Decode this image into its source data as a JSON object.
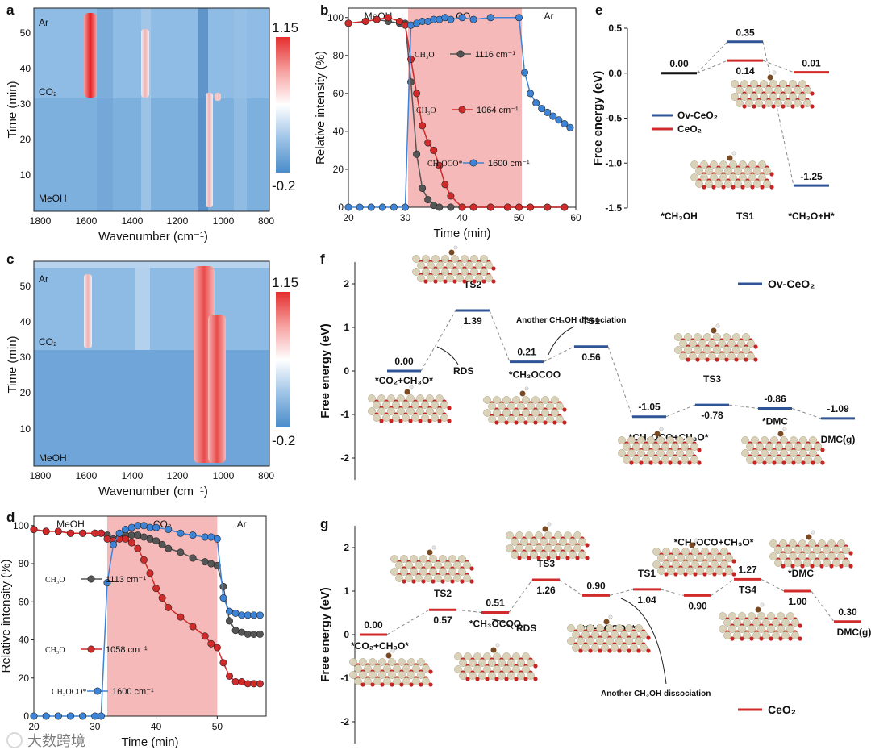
{
  "colors": {
    "blue": "#2f5597",
    "red": "#d12a2a",
    "gray": "#555555",
    "lightblue": "#3d83d6",
    "pink": "#f5b5b5",
    "heatHigh": "#e62e2e",
    "heatLow": "#4a8cc9"
  },
  "panelA": {
    "label": "a",
    "ylabel": "Time (min)",
    "xlabel": "Wavenumber (cm⁻¹)",
    "xticks": [
      "1800",
      "1600",
      "1400",
      "1200",
      "1000",
      "800"
    ],
    "yticks": [
      "10",
      "20",
      "30",
      "40",
      "50"
    ],
    "annot_top": "Ar",
    "annot_mid": "CO₂",
    "annot_bot": "MeOH",
    "cbar_max": "1.15",
    "cbar_min": "-0.2"
  },
  "panelC": {
    "label": "c",
    "ylabel": "Time (min)",
    "xlabel": "Wavenumber (cm⁻¹)",
    "xticks": [
      "1800",
      "1600",
      "1400",
      "1200",
      "1000",
      "800"
    ],
    "yticks": [
      "10",
      "20",
      "30",
      "40",
      "50"
    ],
    "annot_top": "Ar",
    "annot_mid": "CO₂",
    "annot_bot": "MeOH",
    "cbar_max": "1.15",
    "cbar_min": "-0.2"
  },
  "chart_data": [
    {
      "type": "line",
      "id": "b",
      "title": "",
      "xlabel": "Time (min)",
      "ylabel": "Relative intensity (%)",
      "xlim": [
        20,
        60
      ],
      "ylim": [
        0,
        105
      ],
      "xticks": [
        "20",
        "30",
        "40",
        "50",
        "60"
      ],
      "yticks": [
        "0",
        "20",
        "40",
        "60",
        "80",
        "100"
      ],
      "regions": [
        "MeOH",
        "CO₂",
        "Ar"
      ],
      "shade": [
        30.5,
        50.5
      ],
      "series": [
        {
          "name": "1116 cm⁻¹",
          "species": "CH₃O",
          "color": "#555555",
          "x": [
            20,
            23,
            25,
            27,
            29,
            30,
            31,
            32,
            33,
            34,
            35,
            36,
            38,
            40,
            42,
            45,
            48,
            50,
            52,
            55,
            58
          ],
          "y": [
            97,
            98,
            99,
            98,
            97,
            97,
            66,
            28,
            10,
            4,
            1,
            0,
            0,
            0,
            0,
            0,
            0,
            0,
            0,
            0,
            0
          ]
        },
        {
          "name": "1064 cm⁻¹",
          "species": "CH₃O",
          "color": "#d12a2a",
          "x": [
            20,
            23,
            25,
            27,
            29,
            30,
            31,
            32,
            33,
            34,
            35,
            36,
            37,
            38,
            40,
            42,
            45,
            48,
            50,
            52,
            55,
            58
          ],
          "y": [
            97,
            98,
            99,
            100,
            98,
            96,
            78,
            60,
            43,
            34,
            30,
            22,
            12,
            6,
            0,
            0,
            0,
            0,
            0,
            0,
            0,
            0
          ]
        },
        {
          "name": "1600 cm⁻¹",
          "species": "CH₃OCO*",
          "color": "#3d83d6",
          "x": [
            20,
            22,
            24,
            26,
            28,
            30,
            31,
            32,
            33,
            34,
            35,
            36,
            37,
            38,
            40,
            42,
            45,
            50,
            51,
            52,
            53,
            54,
            55,
            56,
            57,
            58,
            59
          ],
          "y": [
            0,
            0,
            0,
            0,
            0,
            0,
            96,
            97,
            98,
            98,
            99,
            99,
            100,
            99,
            100,
            99,
            100,
            100,
            71,
            60,
            55,
            52,
            50,
            48,
            46,
            44,
            42
          ]
        }
      ]
    },
    {
      "type": "line",
      "id": "d",
      "title": "",
      "xlabel": "Time (min)",
      "ylabel": "Relative intensity (%)",
      "xlim": [
        20,
        58
      ],
      "ylim": [
        0,
        105
      ],
      "xticks": [
        "20",
        "30",
        "40",
        "50"
      ],
      "yticks": [
        "0",
        "20",
        "40",
        "60",
        "80",
        "100"
      ],
      "regions": [
        "MeOH",
        "CO₂",
        "Ar"
      ],
      "shade": [
        32,
        50
      ],
      "series": [
        {
          "name": "1113 cm⁻¹",
          "species": "CH₃O",
          "color": "#555555",
          "x": [
            20,
            22,
            24,
            26,
            28,
            30,
            31,
            32,
            33,
            34,
            35,
            36,
            37,
            38,
            39,
            40,
            41,
            42,
            44,
            46,
            48,
            49,
            50,
            51,
            52,
            53,
            54,
            55,
            56,
            57
          ],
          "y": [
            98,
            97,
            97,
            96,
            96,
            96,
            96,
            95,
            93,
            94,
            95,
            95,
            95,
            94,
            93,
            92,
            90,
            88,
            86,
            83,
            81,
            80,
            79,
            68,
            50,
            45,
            44,
            43,
            43,
            43
          ]
        },
        {
          "name": "1058 cm⁻¹",
          "species": "CH₃O",
          "color": "#d12a2a",
          "x": [
            20,
            22,
            24,
            26,
            28,
            30,
            31,
            32,
            33,
            34,
            35,
            36,
            37,
            38,
            39,
            40,
            41,
            42,
            44,
            46,
            48,
            49,
            50,
            51,
            52,
            53,
            54,
            55,
            56,
            57
          ],
          "y": [
            98,
            97,
            97,
            96,
            96,
            96,
            96,
            93,
            92,
            93,
            93,
            91,
            88,
            82,
            75,
            67,
            62,
            57,
            52,
            47,
            42,
            38,
            36,
            28,
            21,
            18,
            18,
            17,
            17,
            17
          ]
        },
        {
          "name": "1600 cm⁻¹",
          "species": "CH₃OCO*",
          "color": "#3d83d6",
          "x": [
            20,
            22,
            24,
            26,
            28,
            30,
            31,
            32,
            33,
            34,
            35,
            36,
            37,
            38,
            39,
            40,
            42,
            44,
            46,
            48,
            49,
            50,
            51,
            52,
            53,
            54,
            55,
            56,
            57
          ],
          "y": [
            0,
            0,
            0,
            0,
            0,
            0,
            0,
            70,
            90,
            96,
            98,
            99,
            100,
            100,
            99,
            99,
            98,
            96,
            95,
            94,
            94,
            93,
            62,
            55,
            54,
            53,
            53,
            53,
            53
          ]
        }
      ]
    },
    {
      "type": "line",
      "id": "e",
      "title": "",
      "xlabel": "",
      "ylabel": "Free energy (eV)",
      "ylim": [
        -1.5,
        0.5
      ],
      "yticks": [
        "0.5",
        "0.0",
        "-0.5",
        "-1.0",
        "-1.5"
      ],
      "categories": [
        "*CH₃OH",
        "TS1",
        "*CH₃O+H*"
      ],
      "series": [
        {
          "name": "Ov-CeO₂",
          "color": "#2f5597",
          "values": [
            0.0,
            0.35,
            -1.25
          ],
          "labels": [
            "0.00",
            "0.35",
            "-1.25"
          ]
        },
        {
          "name": "CeO₂",
          "color": "#d12a2a",
          "values": [
            0.0,
            0.14,
            0.01
          ],
          "labels": [
            "",
            "0.14",
            "0.01"
          ]
        }
      ]
    },
    {
      "type": "line",
      "id": "f",
      "title": "",
      "xlabel": "",
      "ylabel": "Free energy (eV)",
      "ylim": [
        -2.5,
        2.5
      ],
      "yticks": [
        "2",
        "1",
        "0",
        "-1",
        "-2"
      ],
      "legend": "Ov-CeO₂",
      "series": [
        {
          "name": "Ov-CeO₂",
          "color": "#2f5597",
          "levels": [
            {
              "value": 0.0,
              "label": "0.00",
              "name": "*CO₂+CH₃O*"
            },
            {
              "value": 1.39,
              "label": "1.39",
              "name": "TS2"
            },
            {
              "value": 0.21,
              "label": "0.21",
              "name": "*CH₃OCOO"
            },
            {
              "value": 0.56,
              "label": "0.56",
              "name": "TS1"
            },
            {
              "value": -1.05,
              "label": "-1.05",
              "name": "*CH₃OCO+CH₃O*"
            },
            {
              "value": -0.78,
              "label": "-0.78",
              "name": "TS3"
            },
            {
              "value": -0.86,
              "label": "-0.86",
              "name": "*DMC"
            },
            {
              "value": -1.09,
              "label": "-1.09",
              "name": "DMC(g)"
            }
          ]
        }
      ],
      "annotations": [
        "RDS",
        "Another CH₃OH dissociation"
      ]
    },
    {
      "type": "line",
      "id": "g",
      "title": "",
      "xlabel": "",
      "ylabel": "Free energy (eV)",
      "ylim": [
        -2.5,
        2.5
      ],
      "yticks": [
        "2",
        "1",
        "0",
        "-1",
        "-2"
      ],
      "legend": "CeO₂",
      "series": [
        {
          "name": "CeO₂",
          "color": "#d12a2a",
          "levels": [
            {
              "value": 0.0,
              "label": "0.00",
              "name": "*CO₂+CH₃O*"
            },
            {
              "value": 0.57,
              "label": "0.57",
              "name": "TS2"
            },
            {
              "value": 0.51,
              "label": "0.51",
              "name": "*CH₃OCOO"
            },
            {
              "value": 1.26,
              "label": "1.26",
              "name": "TS3"
            },
            {
              "value": 0.9,
              "label": "0.90",
              "name": "*CH₃OCO+*O"
            },
            {
              "value": 1.04,
              "label": "1.04",
              "name": "TS1"
            },
            {
              "value": 0.9,
              "label": "0.90",
              "name": "*CH₃OCO+CH₃O*"
            },
            {
              "value": 1.27,
              "label": "1.27",
              "name": "TS4"
            },
            {
              "value": 1.0,
              "label": "1.00",
              "name": "*DMC"
            },
            {
              "value": 0.3,
              "label": "0.30",
              "name": "DMC(g)"
            }
          ]
        }
      ],
      "annotations": [
        "RDS",
        "Another CH₃OH dissociation"
      ]
    }
  ],
  "watermark": "大数跨境"
}
